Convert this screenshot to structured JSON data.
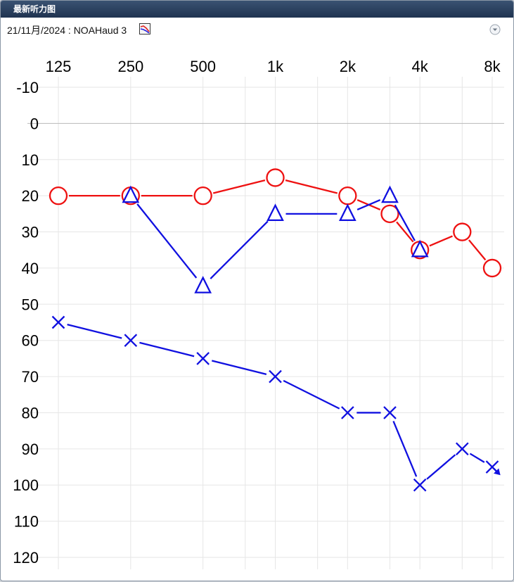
{
  "window": {
    "title": "最新听力图"
  },
  "header": {
    "subtitle": "21/11月/2024 : NOAHaud 3",
    "chart_icon": "audiogram-chart-icon",
    "dropdown_icon": "chevron-down-circle-icon"
  },
  "chart_data": {
    "type": "line",
    "title": "",
    "xlabel": "",
    "ylabel": "",
    "x_scale": "log2",
    "y_inverted": true,
    "ylim": [
      -10,
      120
    ],
    "x_ticks": [
      {
        "value": 125,
        "label": "125"
      },
      {
        "value": 250,
        "label": "250"
      },
      {
        "value": 500,
        "label": "500"
      },
      {
        "value": 1000,
        "label": "1k"
      },
      {
        "value": 2000,
        "label": "2k"
      },
      {
        "value": 4000,
        "label": "4k"
      },
      {
        "value": 8000,
        "label": "8k"
      }
    ],
    "y_ticks": [
      -10,
      0,
      10,
      20,
      30,
      40,
      50,
      60,
      70,
      80,
      90,
      100,
      110,
      120
    ],
    "grid": true,
    "series": [
      {
        "marker": "circle",
        "color": "#ee1111",
        "points": [
          {
            "x": 125,
            "y": 20
          },
          {
            "x": 250,
            "y": 20
          },
          {
            "x": 500,
            "y": 20
          },
          {
            "x": 1000,
            "y": 15
          },
          {
            "x": 2000,
            "y": 20
          },
          {
            "x": 3000,
            "y": 25
          },
          {
            "x": 4000,
            "y": 35
          },
          {
            "x": 6000,
            "y": 30
          },
          {
            "x": 8000,
            "y": 40
          }
        ]
      },
      {
        "marker": "triangle",
        "color": "#1010e0",
        "points": [
          {
            "x": 250,
            "y": 20
          },
          {
            "x": 500,
            "y": 45
          },
          {
            "x": 1000,
            "y": 25
          },
          {
            "x": 2000,
            "y": 25
          },
          {
            "x": 3000,
            "y": 20
          },
          {
            "x": 4000,
            "y": 35
          }
        ]
      },
      {
        "marker": "cross",
        "color": "#1010e0",
        "points": [
          {
            "x": 125,
            "y": 55
          },
          {
            "x": 250,
            "y": 60
          },
          {
            "x": 500,
            "y": 65
          },
          {
            "x": 1000,
            "y": 70
          },
          {
            "x": 2000,
            "y": 80
          },
          {
            "x": 3000,
            "y": 80
          },
          {
            "x": 4000,
            "y": 100
          },
          {
            "x": 6000,
            "y": 90
          },
          {
            "x": 8000,
            "y": 95,
            "no_response": true
          }
        ]
      }
    ]
  }
}
